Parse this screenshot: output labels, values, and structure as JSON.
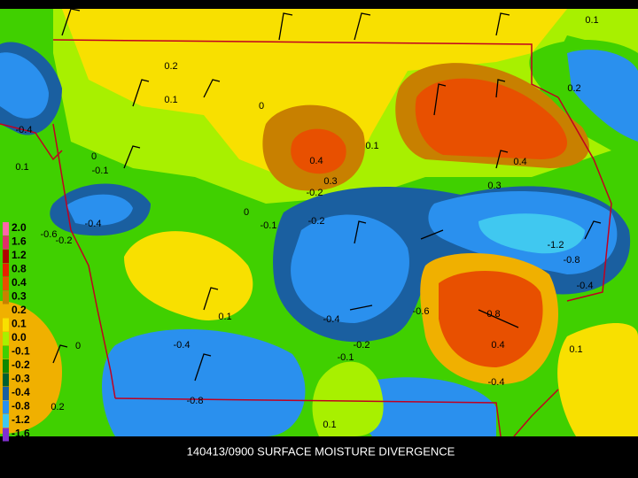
{
  "map": {
    "caption": "140413/0900 SURFACE MOISTURE DIVERGENCE",
    "legend": {
      "labels": [
        "2.0",
        "1.6",
        "1.2",
        "0.8",
        "0.4",
        "0.3",
        "0.2",
        "0.1",
        "0.0",
        "-0.1",
        "-0.2",
        "-0.3",
        "-0.4",
        "-0.8",
        "-1.2",
        "-1.6"
      ],
      "colors": [
        "#ff66aa",
        "#e0306a",
        "#b00000",
        "#e82000",
        "#e85000",
        "#c88000",
        "#f0b000",
        "#f8e000",
        "#a8f000",
        "#40d000",
        "#108800",
        "#006030",
        "#1a5fa0",
        "#2a90ee",
        "#40c8f0",
        "#8030d0"
      ]
    },
    "contour_labels": [
      "0.2",
      "0.1",
      "0",
      "0.1",
      "0.4",
      "0.3",
      "-0.2",
      "0",
      "-0.1",
      "-0.2",
      "0.4",
      "0.3",
      "-1.2",
      "-0.8",
      "-0.4",
      "0.1",
      "0.2",
      "0",
      "-0.1",
      "0.1",
      "-0.4",
      "-0.6",
      "-0.2",
      "-0.4",
      "0.1",
      "-0.4",
      "-0.6",
      "0.8",
      "0.4",
      "0.1",
      "-0.4",
      "-0.2",
      "-0.1",
      "-0.8",
      "0.1",
      "0.2",
      "0",
      "-0.4"
    ]
  }
}
